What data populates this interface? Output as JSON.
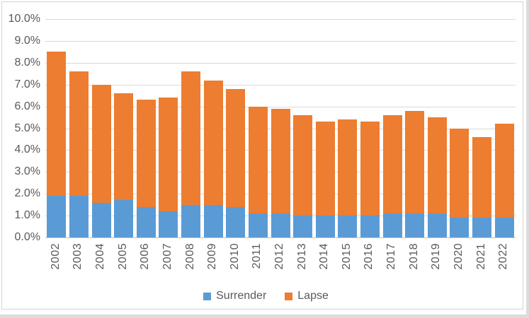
{
  "chart_data": {
    "type": "bar",
    "stacked": true,
    "title": "",
    "xlabel": "",
    "ylabel": "",
    "categories": [
      "2002",
      "2003",
      "2004",
      "2005",
      "2006",
      "2007",
      "2008",
      "2009",
      "2010",
      "2011",
      "2012",
      "2013",
      "2014",
      "2015",
      "2016",
      "2017",
      "2018",
      "2019",
      "2020",
      "2021",
      "2022"
    ],
    "series": [
      {
        "name": "Surrender",
        "color": "#5B9BD5",
        "values": [
          1.9,
          1.9,
          1.6,
          1.7,
          1.4,
          1.2,
          1.5,
          1.5,
          1.4,
          1.1,
          1.1,
          1.0,
          1.0,
          1.0,
          1.0,
          1.1,
          1.1,
          1.1,
          0.9,
          0.9,
          0.9
        ]
      },
      {
        "name": "Lapse",
        "color": "#ED7D31",
        "values": [
          6.6,
          5.7,
          5.4,
          4.9,
          4.9,
          5.2,
          6.1,
          5.7,
          5.4,
          4.9,
          4.8,
          4.6,
          4.3,
          4.4,
          4.3,
          4.5,
          4.7,
          4.4,
          4.1,
          3.7,
          4.3
        ]
      }
    ],
    "stack_totals": [
      8.5,
      7.6,
      7.0,
      6.6,
      6.3,
      6.4,
      7.6,
      7.2,
      6.8,
      6.0,
      5.9,
      5.6,
      5.3,
      5.4,
      5.3,
      5.6,
      5.8,
      5.5,
      5.0,
      4.6,
      5.2
    ],
    "ylim": [
      0,
      10
    ],
    "ytick_step": 1,
    "ytick_labels": [
      "0.0%",
      "1.0%",
      "2.0%",
      "3.0%",
      "4.0%",
      "5.0%",
      "6.0%",
      "7.0%",
      "8.0%",
      "9.0%",
      "10.0%"
    ],
    "grid": true,
    "legend_position": "bottom"
  },
  "colors": {
    "gridline": "#d9d9d9",
    "axis_line": "#c3c3c3",
    "axis_text": "#595959",
    "frame_border": "#d3d3d3"
  }
}
